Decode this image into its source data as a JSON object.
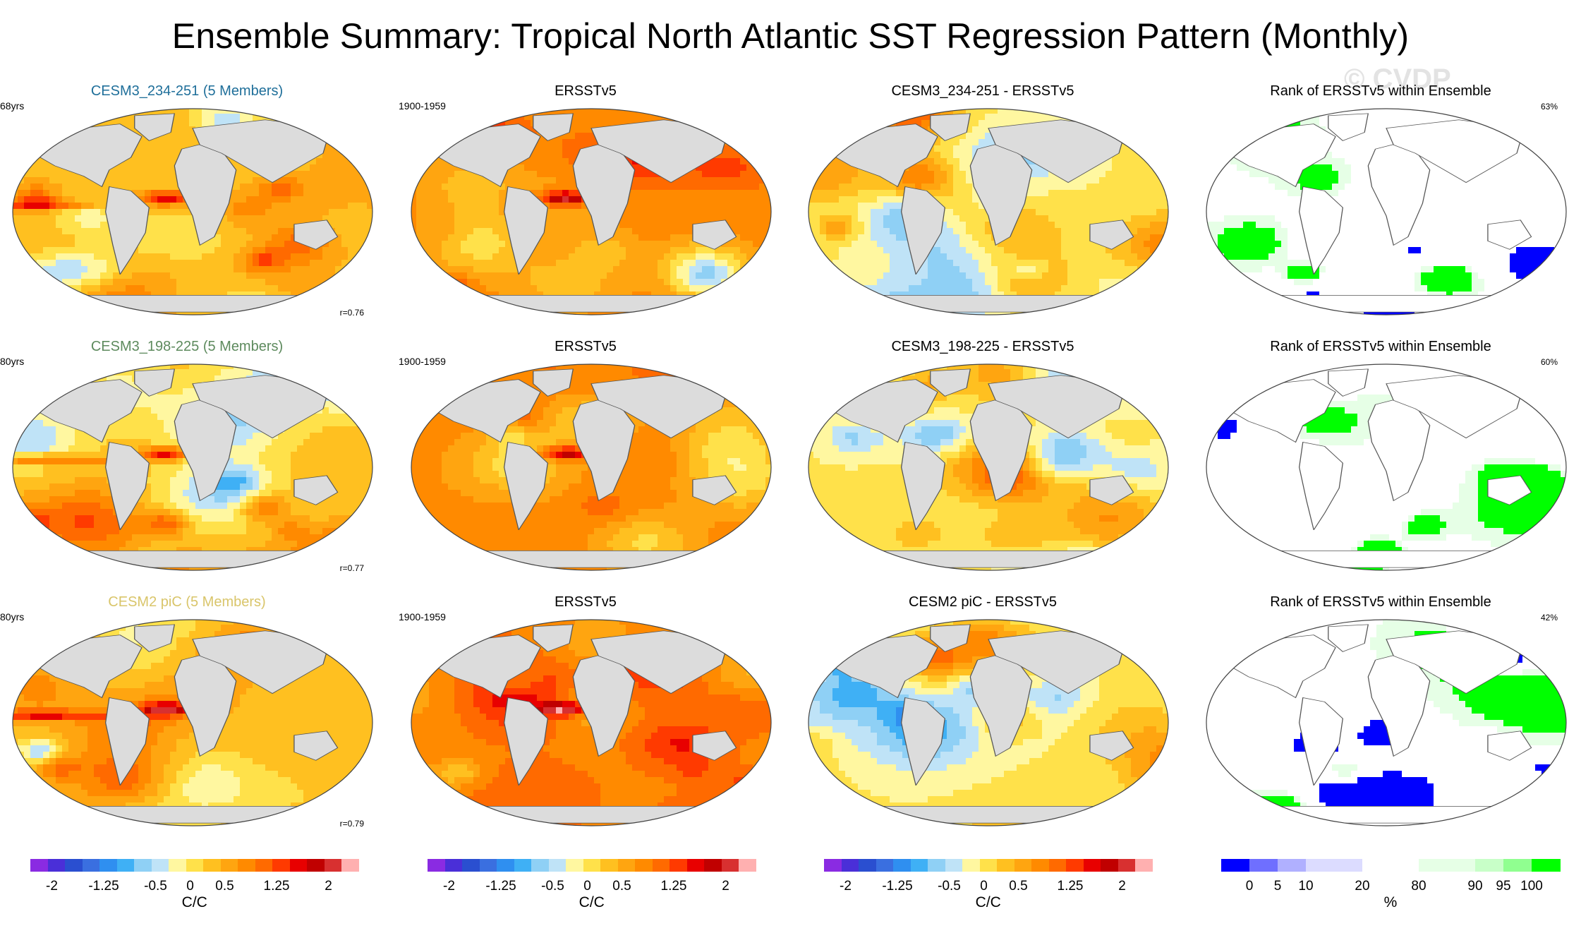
{
  "title": "Ensemble Summary: Tropical North Atlantic SST Regression Pattern (Monthly)",
  "watermark": "© CVDP",
  "rows": [
    {
      "model": {
        "title": "CESM3_234-251 (5 Members)",
        "title_color": "#1f6f9a",
        "years": "68yrs",
        "corr": "r=0.76"
      },
      "obs": {
        "title": "ERSSTv5",
        "years": "1900-1959"
      },
      "diff": {
        "title": "CESM3_234-251 - ERSSTv5"
      },
      "rank": {
        "title": "Rank of ERSSTv5 within Ensemble",
        "pct": "63%"
      }
    },
    {
      "model": {
        "title": "CESM3_198-225 (5 Members)",
        "title_color": "#5d8a5d",
        "years": "80yrs",
        "corr": "r=0.77"
      },
      "obs": {
        "title": "ERSSTv5",
        "years": "1900-1959"
      },
      "diff": {
        "title": "CESM3_198-225 - ERSSTv5"
      },
      "rank": {
        "title": "Rank of ERSSTv5 within Ensemble",
        "pct": "60%"
      }
    },
    {
      "model": {
        "title": "CESM2 piC (5 Members)",
        "title_color": "#d9c56a",
        "years": "80yrs",
        "corr": "r=0.79"
      },
      "obs": {
        "title": "ERSSTv5",
        "years": "1900-1959"
      },
      "diff": {
        "title": "CESM2 piC - ERSSTv5"
      },
      "rank": {
        "title": "Rank of ERSSTv5 within Ensemble",
        "pct": "42%"
      }
    }
  ],
  "chart_data": {
    "type": "heatmap",
    "projection": "robinson",
    "units": "C/C",
    "sst_levels": [
      -2.25,
      -2,
      -1.75,
      -1.5,
      -1.25,
      -1,
      -0.75,
      -0.5,
      -0.25,
      0,
      0.25,
      0.5,
      0.75,
      1,
      1.25,
      1.5,
      1.75,
      2,
      2.25
    ],
    "sst_colors": [
      "#8a2be2",
      "#4a2fd8",
      "#2a4fd0",
      "#3a6fe0",
      "#2f8ff0",
      "#3fb0f5",
      "#8fd0f5",
      "#bfe3f7",
      "#fff7a0",
      "#ffe14a",
      "#ffc020",
      "#ffa510",
      "#ff8a00",
      "#ff6a00",
      "#ff3a00",
      "#e80000",
      "#c00000",
      "#d83030",
      "#ffb0b0"
    ],
    "sst_colorbar": {
      "unit": "C/C",
      "ticks": [
        "-2",
        "-1.25",
        "-0.5",
        "0",
        "0.5",
        "1.25",
        "2"
      ]
    },
    "rank_colorbar": {
      "unit": "%",
      "ticks": [
        "0",
        "5",
        "10",
        "20",
        "80",
        "90",
        "95",
        "100"
      ],
      "colors": [
        "#0000ff",
        "#6f6fff",
        "#b0b0ff",
        "#dcdcff",
        "#ffffff",
        "#e6ffe6",
        "#c8ffc8",
        "#90ff90",
        "#00ff00"
      ]
    }
  }
}
